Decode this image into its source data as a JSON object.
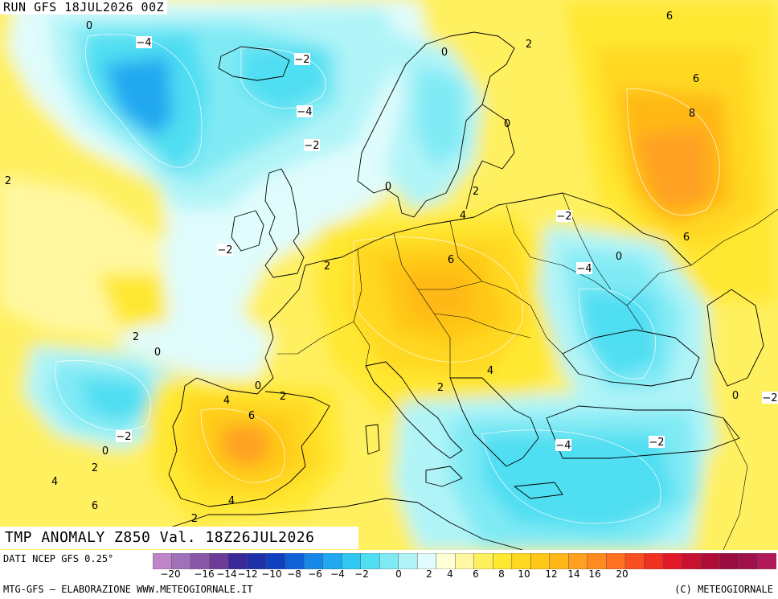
{
  "header": {
    "run_label": "RUN GFS 18JUL2026 00Z"
  },
  "footer": {
    "title": "TMP ANOMALY Z850 Val. 18Z26JUL2026"
  },
  "bottom": {
    "data_source": "DATI NCEP GFS 0.25°",
    "credit_left": "MTG-GFS — ELABORAZIONE WWW.METEOGIORNALE.IT",
    "credit_right": "(C) METEOGIORNALE"
  },
  "legend": {
    "ticks": [
      "-20",
      "-16",
      "-14",
      "-12",
      "-10",
      "-8",
      "-6",
      "-4",
      "-2",
      "0",
      "2",
      "4",
      "6",
      "8",
      "10",
      "12",
      "14",
      "16",
      "20"
    ],
    "colors": [
      "#c085c8",
      "#a070b8",
      "#8a58a8",
      "#6e3c98",
      "#3a2a98",
      "#2030a8",
      "#1040c0",
      "#1060d8",
      "#1888e8",
      "#20a8f0",
      "#30c8f0",
      "#50def2",
      "#80eaf4",
      "#b0f4f8",
      "#e0fcfc",
      "#ffffd8",
      "#fff8a0",
      "#fff060",
      "#ffe830",
      "#ffd820",
      "#ffc818",
      "#ffb818",
      "#ffa020",
      "#ff8a20",
      "#ff7020",
      "#f85020",
      "#f03020",
      "#e01828",
      "#c81030",
      "#b00c38",
      "#980c40",
      "#a0104a",
      "#b0185a"
    ]
  },
  "contour_labels": [
    {
      "text": "0"
    },
    {
      "text": "-4"
    },
    {
      "text": "-2"
    },
    {
      "text": "-4"
    },
    {
      "text": "-2"
    },
    {
      "text": "2"
    },
    {
      "text": "-2"
    },
    {
      "text": "2"
    },
    {
      "text": "0"
    },
    {
      "text": "0"
    },
    {
      "text": "6"
    },
    {
      "text": "2"
    },
    {
      "text": "0"
    },
    {
      "text": "6"
    },
    {
      "text": "8"
    },
    {
      "text": "2"
    },
    {
      "text": "4"
    },
    {
      "text": "-2"
    },
    {
      "text": "6"
    },
    {
      "text": "6"
    },
    {
      "text": "0"
    },
    {
      "text": "-4"
    },
    {
      "text": "2"
    },
    {
      "text": "0"
    },
    {
      "text": "4"
    },
    {
      "text": "2"
    },
    {
      "text": "4"
    },
    {
      "text": "6"
    },
    {
      "text": "0"
    },
    {
      "text": "2"
    },
    {
      "text": "-2"
    },
    {
      "text": "0"
    },
    {
      "text": "2"
    },
    {
      "text": "4"
    },
    {
      "text": "6"
    },
    {
      "text": "4"
    },
    {
      "text": "2"
    },
    {
      "text": "-4"
    },
    {
      "text": "-2"
    },
    {
      "text": "0"
    },
    {
      "text": "-2"
    }
  ]
}
